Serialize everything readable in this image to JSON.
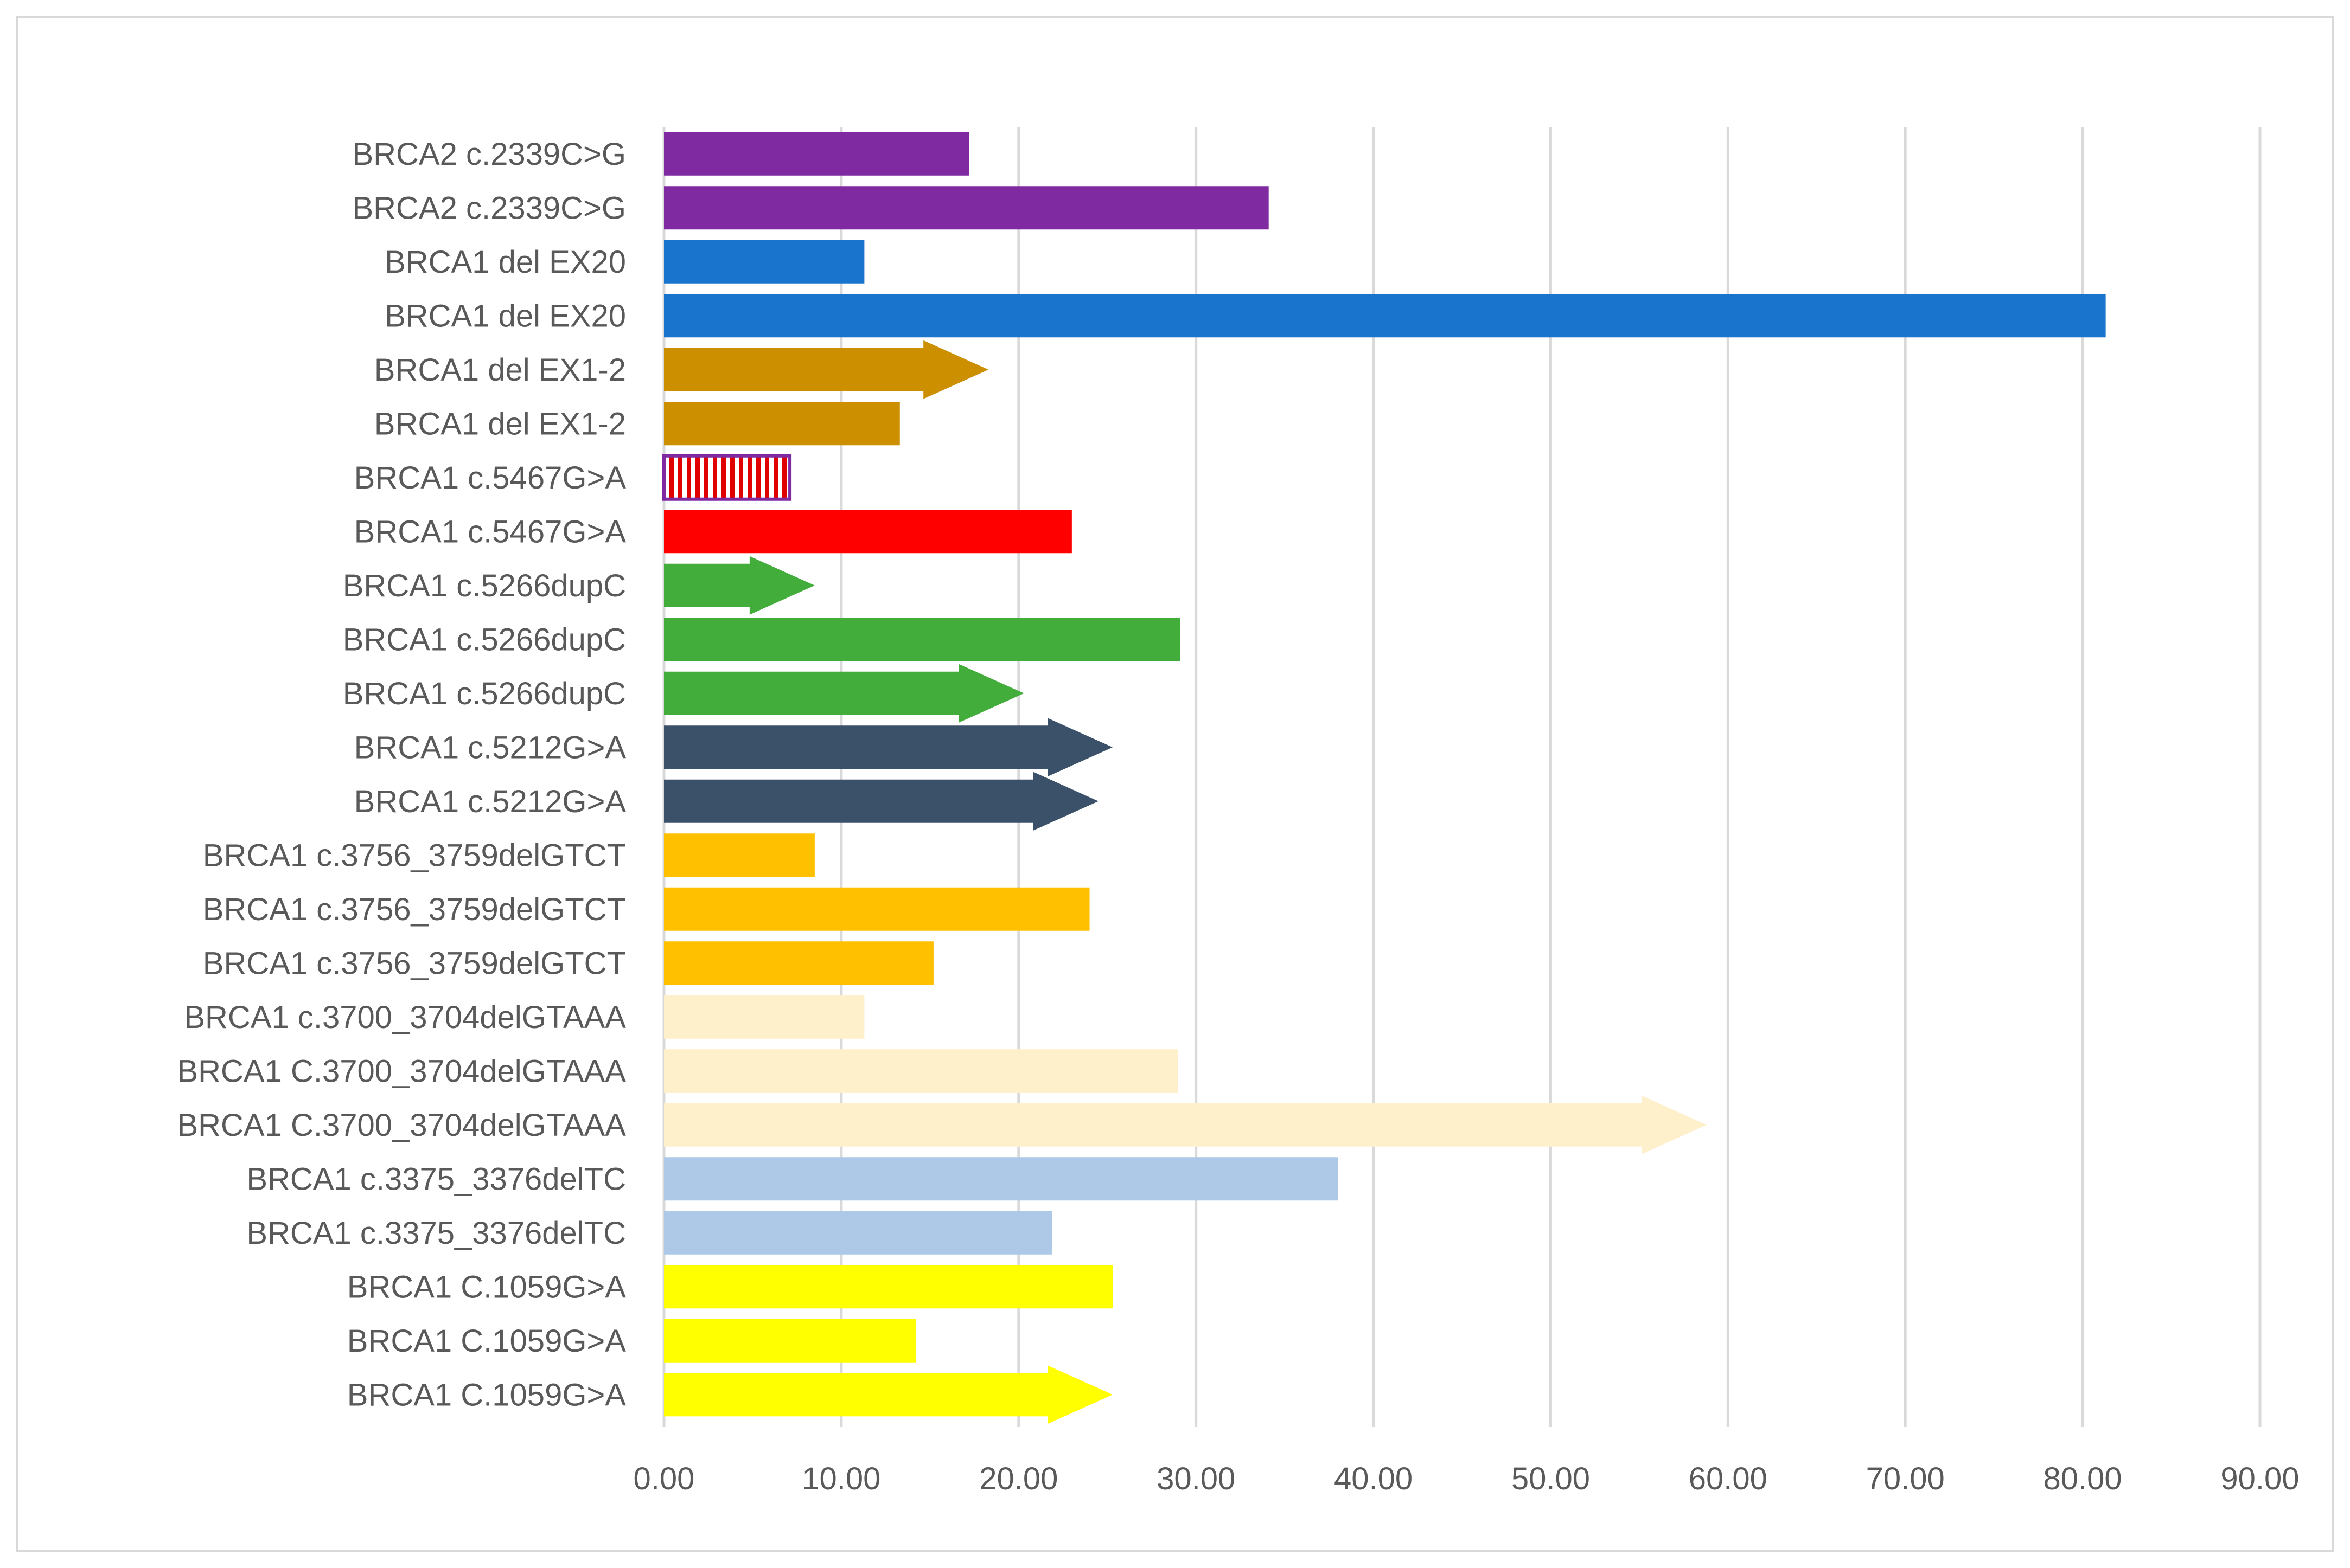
{
  "chart_data": {
    "type": "bar",
    "orientation": "horizontal",
    "title": "",
    "xlabel": "",
    "ylabel": "",
    "xlim": [
      0,
      90
    ],
    "x_ticks": [
      0,
      10,
      20,
      30,
      40,
      50,
      60,
      70,
      80,
      90
    ],
    "x_tick_labels": [
      "0.00",
      "10.00",
      "20.00",
      "30.00",
      "40.00",
      "50.00",
      "60.00",
      "70.00",
      "80.00",
      "90.00"
    ],
    "grid": "vertical",
    "legend": "none",
    "categories": [
      "BRCA2 c.2339C>G",
      "BRCA2 c.2339C>G",
      "BRCA1 del EX20",
      "BRCA1 del EX20",
      "BRCA1 del EX1-2",
      "BRCA1 del EX1-2",
      "BRCA1 c.5467G>A",
      "BRCA1 c.5467G>A",
      "BRCA1 c.5266dupC",
      "BRCA1 c.5266dupC",
      "BRCA1 c.5266dupC",
      "BRCA1 c.5212G>A",
      "BRCA1 c.5212G>A",
      "BRCA1 c.3756_3759delGTCT",
      "BRCA1 c.3756_3759delGTCT",
      "BRCA1 c.3756_3759delGTCT",
      "BRCA1 c.3700_3704delGTAAA",
      "BRCA1 C.3700_3704delGTAAA",
      "BRCA1 C.3700_3704delGTAAA",
      "BRCA1 c.3375_3376delTC",
      "BRCA1 c.3375_3376delTC",
      "BRCA1 C.1059G>A",
      "BRCA1 C.1059G>A",
      "BRCA1 C.1059G>A"
    ],
    "values": [
      17.2,
      34.1,
      11.3,
      81.3,
      18.3,
      13.3,
      7.1,
      23.0,
      8.5,
      29.1,
      20.3,
      25.3,
      24.5,
      8.5,
      24.0,
      15.2,
      11.3,
      29.0,
      58.8,
      38.0,
      21.9,
      25.3,
      14.2,
      25.3
    ],
    "shapes": [
      "bar",
      "bar",
      "bar",
      "bar",
      "arrow",
      "bar",
      "striped",
      "bar",
      "arrow",
      "bar",
      "arrow",
      "arrow",
      "arrow",
      "bar",
      "bar",
      "bar",
      "bar",
      "bar",
      "arrow",
      "bar",
      "bar",
      "bar",
      "bar",
      "arrow"
    ],
    "colors": [
      "#7f2aa1",
      "#7f2aa1",
      "#1874cd",
      "#1874cd",
      "#cc8f00",
      "#cc8f00",
      "#e00000",
      "#ff0000",
      "#43ad3c",
      "#43ad3c",
      "#43ad3c",
      "#3a5169",
      "#3a5169",
      "#ffc000",
      "#ffc000",
      "#ffc000",
      "#fff0cc",
      "#fff0cc",
      "#fff0cc",
      "#aec9e8",
      "#aec9e8",
      "#ffff00",
      "#ffff00",
      "#ffff00"
    ]
  }
}
